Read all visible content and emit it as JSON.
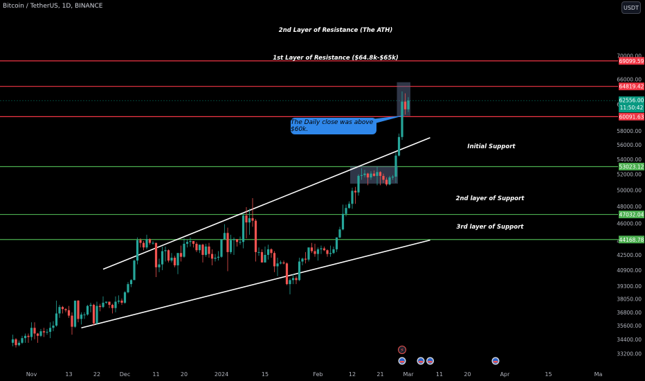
{
  "header": {
    "symbol": "Bitcoin / TetherUS, 1D, BINANCE",
    "currency": "USDT"
  },
  "colors": {
    "background": "#000000",
    "up": "#26a69a",
    "down": "#ef5350",
    "resistance": "#f23645",
    "support": "#4caf50",
    "channel": "#ffffff",
    "current": "#089981",
    "note": "#2f87ea",
    "box": "#5d6b8f"
  },
  "chart_data": {
    "type": "candlestick",
    "y_axis": {
      "scale": "log",
      "ylim": [
        32700,
        74500
      ],
      "ticks": [
        33200,
        34400,
        35600,
        36800,
        38050,
        39300,
        40900,
        42500,
        44000,
        46000,
        48000,
        50000,
        52000,
        54000,
        56000,
        58000,
        62000,
        66000,
        70000
      ]
    },
    "x_axis": {
      "tick_labels": [
        "Nov",
        "13",
        "22",
        "Dec",
        "11",
        "20",
        "2024",
        "15",
        "Feb",
        "12",
        "21",
        "Mar",
        "11",
        "20",
        "Apr",
        "15",
        "Ma"
      ],
      "tick_dates": [
        "2023-11-01",
        "2023-11-13",
        "2023-11-22",
        "2023-12-01",
        "2023-12-11",
        "2023-12-20",
        "2024-01-01",
        "2024-01-15",
        "2024-02-01",
        "2024-02-12",
        "2024-02-21",
        "2024-03-01",
        "2024-03-11",
        "2024-03-20",
        "2024-04-01",
        "2024-04-15",
        "2024-05-01"
      ]
    },
    "ohlc": [
      {
        "d": "2023-10-26",
        "o": 34100,
        "h": 34800,
        "c": 34400,
        "l": 33800
      },
      {
        "d": "2023-10-27",
        "o": 34400,
        "h": 34500,
        "c": 33900,
        "l": 33700
      },
      {
        "d": "2023-10-28",
        "o": 33900,
        "h": 34300,
        "c": 34100,
        "l": 33800
      },
      {
        "d": "2023-10-29",
        "o": 34100,
        "h": 34700,
        "c": 34500,
        "l": 34000
      },
      {
        "d": "2023-10-30",
        "o": 34500,
        "h": 34900,
        "c": 34700,
        "l": 34100
      },
      {
        "d": "2023-10-31",
        "o": 34700,
        "h": 34900,
        "c": 34600,
        "l": 34100
      },
      {
        "d": "2023-11-01",
        "o": 34600,
        "h": 35900,
        "c": 35400,
        "l": 34300
      },
      {
        "d": "2023-11-02",
        "o": 35400,
        "h": 35900,
        "c": 34900,
        "l": 34400
      },
      {
        "d": "2023-11-03",
        "o": 34900,
        "h": 34950,
        "c": 34700,
        "l": 34100
      },
      {
        "d": "2023-11-04",
        "o": 34700,
        "h": 35300,
        "c": 35100,
        "l": 34600
      },
      {
        "d": "2023-11-05",
        "o": 35100,
        "h": 35400,
        "c": 35000,
        "l": 34600
      },
      {
        "d": "2023-11-06",
        "o": 35000,
        "h": 35300,
        "c": 35050,
        "l": 34800
      },
      {
        "d": "2023-11-07",
        "o": 35050,
        "h": 35900,
        "c": 35400,
        "l": 34500
      },
      {
        "d": "2023-11-08",
        "o": 35400,
        "h": 36000,
        "c": 35600,
        "l": 35100
      },
      {
        "d": "2023-11-09",
        "o": 35600,
        "h": 37900,
        "c": 36700,
        "l": 35500
      },
      {
        "d": "2023-11-10",
        "o": 36700,
        "h": 37500,
        "c": 37300,
        "l": 36300
      },
      {
        "d": "2023-11-11",
        "o": 37300,
        "h": 37400,
        "c": 37100,
        "l": 36700
      },
      {
        "d": "2023-11-12",
        "o": 37100,
        "h": 37200,
        "c": 37000,
        "l": 36800
      },
      {
        "d": "2023-11-13",
        "o": 37000,
        "h": 37400,
        "c": 36500,
        "l": 36300
      },
      {
        "d": "2023-11-14",
        "o": 36500,
        "h": 36800,
        "c": 35500,
        "l": 34800
      },
      {
        "d": "2023-11-15",
        "o": 35500,
        "h": 37900,
        "c": 37900,
        "l": 35400
      },
      {
        "d": "2023-11-16",
        "o": 37900,
        "h": 37950,
        "c": 36200,
        "l": 35900
      },
      {
        "d": "2023-11-17",
        "o": 36200,
        "h": 36800,
        "c": 36600,
        "l": 35700
      },
      {
        "d": "2023-11-18",
        "o": 36600,
        "h": 36800,
        "c": 36600,
        "l": 36200
      },
      {
        "d": "2023-11-19",
        "o": 36600,
        "h": 37500,
        "c": 37400,
        "l": 36500
      },
      {
        "d": "2023-11-20",
        "o": 37400,
        "h": 37700,
        "c": 37500,
        "l": 36800
      },
      {
        "d": "2023-11-21",
        "o": 37500,
        "h": 37600,
        "c": 35800,
        "l": 35600
      },
      {
        "d": "2023-11-22",
        "o": 35800,
        "h": 37800,
        "c": 37400,
        "l": 35700
      },
      {
        "d": "2023-11-23",
        "o": 37400,
        "h": 37600,
        "c": 37300,
        "l": 36900
      },
      {
        "d": "2023-11-24",
        "o": 37300,
        "h": 38300,
        "c": 37700,
        "l": 37200
      },
      {
        "d": "2023-11-25",
        "o": 37700,
        "h": 37800,
        "c": 37800,
        "l": 37600
      },
      {
        "d": "2023-11-26",
        "o": 37800,
        "h": 37800,
        "c": 37500,
        "l": 37200
      },
      {
        "d": "2023-11-27",
        "o": 37500,
        "h": 37600,
        "c": 37200,
        "l": 36700
      },
      {
        "d": "2023-11-28",
        "o": 37200,
        "h": 38300,
        "c": 37800,
        "l": 36800
      },
      {
        "d": "2023-11-29",
        "o": 37800,
        "h": 38400,
        "c": 37900,
        "l": 37600
      },
      {
        "d": "2023-11-30",
        "o": 37900,
        "h": 38100,
        "c": 37700,
        "l": 37500
      },
      {
        "d": "2023-12-01",
        "o": 37700,
        "h": 38800,
        "c": 38700,
        "l": 37600
      },
      {
        "d": "2023-12-02",
        "o": 38700,
        "h": 39700,
        "c": 39500,
        "l": 38600
      },
      {
        "d": "2023-12-03",
        "o": 39500,
        "h": 40000,
        "c": 39900,
        "l": 39200
      },
      {
        "d": "2023-12-04",
        "o": 39900,
        "h": 42000,
        "c": 41900,
        "l": 39900
      },
      {
        "d": "2023-12-05",
        "o": 41900,
        "h": 44400,
        "c": 44100,
        "l": 41500
      },
      {
        "d": "2023-12-06",
        "o": 44100,
        "h": 44300,
        "c": 43800,
        "l": 43300
      },
      {
        "d": "2023-12-07",
        "o": 43800,
        "h": 44000,
        "c": 43300,
        "l": 43000
      },
      {
        "d": "2023-12-08",
        "o": 43300,
        "h": 44700,
        "c": 44200,
        "l": 43100
      },
      {
        "d": "2023-12-09",
        "o": 44200,
        "h": 44300,
        "c": 43800,
        "l": 43600
      },
      {
        "d": "2023-12-10",
        "o": 43800,
        "h": 44000,
        "c": 43800,
        "l": 43600
      },
      {
        "d": "2023-12-11",
        "o": 43800,
        "h": 43800,
        "c": 41200,
        "l": 40200
      },
      {
        "d": "2023-12-12",
        "o": 41200,
        "h": 42100,
        "c": 41500,
        "l": 40700
      },
      {
        "d": "2023-12-13",
        "o": 41500,
        "h": 43400,
        "c": 42900,
        "l": 40900
      },
      {
        "d": "2023-12-14",
        "o": 42900,
        "h": 43400,
        "c": 43000,
        "l": 41800
      },
      {
        "d": "2023-12-15",
        "o": 43000,
        "h": 43100,
        "c": 41900,
        "l": 41700
      },
      {
        "d": "2023-12-16",
        "o": 41900,
        "h": 42700,
        "c": 42200,
        "l": 41700
      },
      {
        "d": "2023-12-17",
        "o": 42200,
        "h": 42400,
        "c": 41400,
        "l": 41200
      },
      {
        "d": "2023-12-18",
        "o": 41400,
        "h": 42700,
        "c": 42700,
        "l": 40500
      },
      {
        "d": "2023-12-19",
        "o": 42700,
        "h": 43500,
        "c": 42300,
        "l": 41800
      },
      {
        "d": "2023-12-20",
        "o": 42300,
        "h": 44300,
        "c": 43700,
        "l": 42200
      },
      {
        "d": "2023-12-21",
        "o": 43700,
        "h": 44200,
        "c": 43900,
        "l": 43300
      },
      {
        "d": "2023-12-22",
        "o": 43900,
        "h": 44400,
        "c": 44000,
        "l": 43400
      },
      {
        "d": "2023-12-23",
        "o": 44000,
        "h": 44000,
        "c": 43700,
        "l": 43300
      },
      {
        "d": "2023-12-24",
        "o": 43700,
        "h": 43900,
        "c": 43000,
        "l": 42800
      },
      {
        "d": "2023-12-25",
        "o": 43000,
        "h": 43600,
        "c": 43600,
        "l": 42700
      },
      {
        "d": "2023-12-26",
        "o": 43600,
        "h": 43700,
        "c": 42500,
        "l": 41700
      },
      {
        "d": "2023-12-27",
        "o": 42500,
        "h": 43700,
        "c": 43400,
        "l": 42300
      },
      {
        "d": "2023-12-28",
        "o": 43400,
        "h": 43800,
        "c": 42600,
        "l": 42200
      },
      {
        "d": "2023-12-29",
        "o": 42600,
        "h": 43100,
        "c": 42100,
        "l": 41400
      },
      {
        "d": "2023-12-30",
        "o": 42100,
        "h": 42600,
        "c": 42200,
        "l": 41800
      },
      {
        "d": "2023-12-31",
        "o": 42200,
        "h": 42900,
        "c": 42300,
        "l": 41900
      },
      {
        "d": "2024-01-01",
        "o": 42300,
        "h": 44200,
        "c": 44200,
        "l": 42200
      },
      {
        "d": "2024-01-02",
        "o": 44200,
        "h": 45900,
        "c": 44900,
        "l": 44200
      },
      {
        "d": "2024-01-03",
        "o": 44900,
        "h": 45500,
        "c": 42800,
        "l": 40800
      },
      {
        "d": "2024-01-04",
        "o": 42800,
        "h": 44700,
        "c": 44100,
        "l": 42600
      },
      {
        "d": "2024-01-05",
        "o": 44100,
        "h": 44400,
        "c": 44200,
        "l": 42500
      },
      {
        "d": "2024-01-06",
        "o": 44200,
        "h": 44200,
        "c": 43900,
        "l": 43400
      },
      {
        "d": "2024-01-07",
        "o": 43900,
        "h": 44500,
        "c": 43900,
        "l": 43600
      },
      {
        "d": "2024-01-08",
        "o": 43900,
        "h": 47200,
        "c": 46900,
        "l": 43200
      },
      {
        "d": "2024-01-09",
        "o": 46900,
        "h": 47900,
        "c": 46100,
        "l": 44300
      },
      {
        "d": "2024-01-10",
        "o": 46100,
        "h": 47700,
        "c": 46600,
        "l": 44700
      },
      {
        "d": "2024-01-11",
        "o": 46600,
        "h": 49000,
        "c": 46300,
        "l": 45600
      },
      {
        "d": "2024-01-12",
        "o": 46300,
        "h": 46500,
        "c": 42800,
        "l": 41800
      },
      {
        "d": "2024-01-13",
        "o": 42800,
        "h": 43300,
        "c": 42800,
        "l": 42400
      },
      {
        "d": "2024-01-14",
        "o": 42800,
        "h": 43100,
        "c": 41700,
        "l": 41700
      },
      {
        "d": "2024-01-15",
        "o": 41700,
        "h": 43400,
        "c": 42500,
        "l": 41700
      },
      {
        "d": "2024-01-16",
        "o": 42500,
        "h": 43600,
        "c": 43100,
        "l": 42000
      },
      {
        "d": "2024-01-17",
        "o": 43100,
        "h": 43200,
        "c": 42700,
        "l": 42200
      },
      {
        "d": "2024-01-18",
        "o": 42700,
        "h": 42900,
        "c": 41300,
        "l": 40700
      },
      {
        "d": "2024-01-19",
        "o": 41300,
        "h": 42200,
        "c": 41600,
        "l": 40300
      },
      {
        "d": "2024-01-20",
        "o": 41600,
        "h": 41900,
        "c": 41700,
        "l": 41500
      },
      {
        "d": "2024-01-21",
        "o": 41700,
        "h": 41900,
        "c": 41600,
        "l": 41500
      },
      {
        "d": "2024-01-22",
        "o": 41600,
        "h": 41700,
        "c": 39500,
        "l": 39400
      },
      {
        "d": "2024-01-23",
        "o": 39500,
        "h": 40100,
        "c": 39900,
        "l": 38500
      },
      {
        "d": "2024-01-24",
        "o": 39900,
        "h": 40500,
        "c": 40100,
        "l": 39500
      },
      {
        "d": "2024-01-25",
        "o": 40100,
        "h": 40300,
        "c": 39900,
        "l": 39500
      },
      {
        "d": "2024-01-26",
        "o": 39900,
        "h": 42200,
        "c": 41800,
        "l": 39800
      },
      {
        "d": "2024-01-27",
        "o": 41800,
        "h": 42200,
        "c": 42100,
        "l": 41400
      },
      {
        "d": "2024-01-28",
        "o": 42100,
        "h": 42800,
        "c": 42000,
        "l": 41600
      },
      {
        "d": "2024-01-29",
        "o": 42000,
        "h": 43300,
        "c": 43300,
        "l": 41800
      },
      {
        "d": "2024-01-30",
        "o": 43300,
        "h": 43800,
        "c": 42900,
        "l": 42700
      },
      {
        "d": "2024-01-31",
        "o": 42900,
        "h": 43700,
        "c": 42600,
        "l": 42300
      },
      {
        "d": "2024-02-01",
        "o": 42600,
        "h": 43300,
        "c": 43100,
        "l": 41900
      },
      {
        "d": "2024-02-02",
        "o": 43100,
        "h": 43500,
        "c": 43200,
        "l": 42600
      },
      {
        "d": "2024-02-03",
        "o": 43200,
        "h": 43400,
        "c": 43000,
        "l": 42900
      },
      {
        "d": "2024-02-04",
        "o": 43000,
        "h": 43100,
        "c": 42600,
        "l": 42300
      },
      {
        "d": "2024-02-05",
        "o": 42600,
        "h": 43500,
        "c": 42700,
        "l": 42300
      },
      {
        "d": "2024-02-06",
        "o": 42700,
        "h": 43400,
        "c": 43100,
        "l": 42600
      },
      {
        "d": "2024-02-07",
        "o": 43100,
        "h": 44400,
        "c": 44400,
        "l": 42800
      },
      {
        "d": "2024-02-08",
        "o": 44400,
        "h": 45600,
        "c": 45300,
        "l": 44300
      },
      {
        "d": "2024-02-09",
        "o": 45300,
        "h": 48200,
        "c": 47100,
        "l": 45200
      },
      {
        "d": "2024-02-10",
        "o": 47100,
        "h": 48200,
        "c": 47800,
        "l": 46800
      },
      {
        "d": "2024-02-11",
        "o": 47800,
        "h": 48600,
        "c": 48300,
        "l": 47700
      },
      {
        "d": "2024-02-12",
        "o": 48300,
        "h": 50300,
        "c": 49900,
        "l": 47700
      },
      {
        "d": "2024-02-13",
        "o": 49900,
        "h": 50400,
        "c": 49700,
        "l": 48300
      },
      {
        "d": "2024-02-14",
        "o": 49700,
        "h": 52000,
        "c": 51800,
        "l": 49300
      },
      {
        "d": "2024-02-15",
        "o": 51800,
        "h": 52800,
        "c": 51900,
        "l": 51300
      },
      {
        "d": "2024-02-16",
        "o": 51900,
        "h": 52600,
        "c": 52100,
        "l": 51600
      },
      {
        "d": "2024-02-17",
        "o": 52100,
        "h": 52200,
        "c": 51600,
        "l": 50600
      },
      {
        "d": "2024-02-18",
        "o": 51600,
        "h": 52400,
        "c": 52100,
        "l": 51300
      },
      {
        "d": "2024-02-19",
        "o": 52100,
        "h": 52500,
        "c": 51800,
        "l": 51700
      },
      {
        "d": "2024-02-20",
        "o": 51800,
        "h": 53000,
        "c": 52300,
        "l": 50600
      },
      {
        "d": "2024-02-21",
        "o": 52300,
        "h": 52400,
        "c": 51800,
        "l": 50600
      },
      {
        "d": "2024-02-22",
        "o": 51800,
        "h": 52100,
        "c": 51300,
        "l": 50900
      },
      {
        "d": "2024-02-23",
        "o": 51300,
        "h": 51600,
        "c": 50700,
        "l": 50500
      },
      {
        "d": "2024-02-24",
        "o": 50700,
        "h": 51800,
        "c": 51600,
        "l": 50600
      },
      {
        "d": "2024-02-25",
        "o": 51600,
        "h": 51900,
        "c": 51700,
        "l": 51300
      },
      {
        "d": "2024-02-26",
        "o": 51700,
        "h": 54900,
        "c": 54500,
        "l": 50900
      },
      {
        "d": "2024-02-27",
        "o": 54500,
        "h": 57600,
        "c": 57100,
        "l": 54400
      },
      {
        "d": "2024-02-28",
        "o": 57100,
        "h": 64000,
        "c": 62400,
        "l": 56700
      },
      {
        "d": "2024-02-29",
        "o": 62400,
        "h": 63700,
        "c": 61200,
        "l": 60400
      },
      {
        "d": "2024-03-01",
        "o": 61200,
        "h": 63100,
        "c": 62556,
        "l": 60800
      }
    ],
    "horizontal_levels": [
      {
        "name": "2nd Layer of Resistance (The ATH)",
        "price": 69099.59,
        "label": "69099.59",
        "kind": "resistance"
      },
      {
        "name": "1st Layer of Resistance ($64.8k-$65k)",
        "price": 64819.42,
        "label": "64819.42",
        "kind": "resistance"
      },
      {
        "name": "",
        "price": 60091.63,
        "label": "60091.63",
        "kind": "resistance"
      },
      {
        "name": "Initial Support",
        "price": 53023.12,
        "label": "53023.12",
        "kind": "support"
      },
      {
        "name": "2nd layer of Support",
        "price": 47032.04,
        "label": "47032.04",
        "kind": "support"
      },
      {
        "name": "3rd layer of Support",
        "price": 44168.78,
        "label": "44168.78",
        "kind": "support"
      }
    ],
    "current_price": {
      "price": 62556.0,
      "label": "62556.00",
      "countdown": "11:50:42"
    },
    "price_axis_ticks_labels": [
      "70000.00",
      "66000.00",
      "62000.00",
      "58000.00",
      "56000.00",
      "54000.00",
      "52000.00",
      "50000.00",
      "48000.00",
      "46000.00",
      "44000.00",
      "42500.00",
      "40900.00",
      "39300.00",
      "38050.00",
      "36800.00",
      "35600.00",
      "34400.00",
      "33200.00"
    ],
    "trendlines": [
      {
        "name": "channel-upper",
        "from": {
          "d": "2023-11-24",
          "p": 41000
        },
        "to": {
          "d": "2024-03-08",
          "p": 57000
        }
      },
      {
        "name": "channel-lower",
        "from": {
          "d": "2023-11-17",
          "p": 35400
        },
        "to": {
          "d": "2024-03-08",
          "p": 44100
        }
      }
    ],
    "boxes": [
      {
        "name": "consolidation-box",
        "from": {
          "d": "2024-02-12",
          "p": 53100
        },
        "to": {
          "d": "2024-02-26",
          "p": 50800
        }
      },
      {
        "name": "breakout-box",
        "from": {
          "d": "2024-02-27",
          "p": 65500
        },
        "to": {
          "d": "2024-03-01",
          "p": 60200
        }
      }
    ],
    "annotation": {
      "text": "The Daily close was above $60k.",
      "target": {
        "d": "2024-02-29",
        "p": 60300
      }
    }
  }
}
